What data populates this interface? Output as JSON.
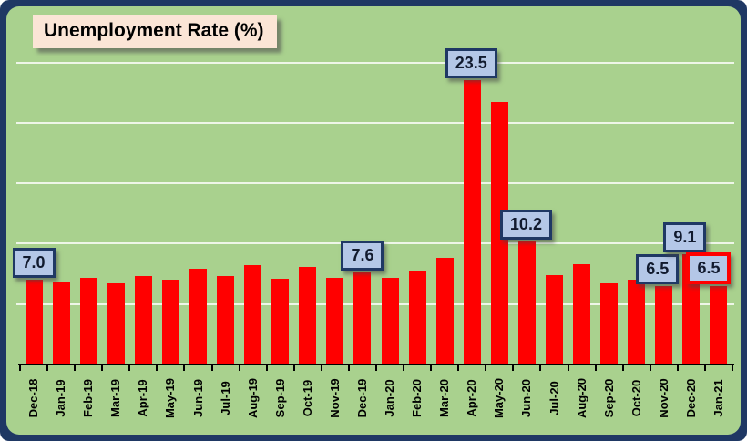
{
  "chart": {
    "title": "Unemployment Rate (%)"
  },
  "colors": {
    "frame_navy": "#1f3864",
    "panel_green": "#a9d18e",
    "bar_red": "#ff0000",
    "callout_fill": "#b4c7e7",
    "callout_border": "#1f3864",
    "callout_highlight_border": "#ff0000",
    "title_fill": "#fbe5d6",
    "gridline": "rgba(255,255,255,0.8)"
  },
  "chart_data": {
    "type": "bar",
    "title": "Unemployment Rate (%)",
    "xlabel": "",
    "ylabel": "",
    "ylim": [
      0,
      26
    ],
    "gridline_values": [
      5,
      10,
      15,
      20,
      25
    ],
    "grid": true,
    "legend": false,
    "categories": [
      "Dec-18",
      "Jan-19",
      "Feb-19",
      "Mar-19",
      "Apr-19",
      "May-19",
      "Jun-19",
      "Jul-19",
      "Aug-19",
      "Sep-19",
      "Oct-19",
      "Nov-19",
      "Dec-19",
      "Jan-20",
      "Feb-20",
      "Mar-20",
      "Apr-20",
      "May-20",
      "Jun-20",
      "Jul-20",
      "Aug-20",
      "Sep-20",
      "Oct-20",
      "Nov-20",
      "Dec-20",
      "Jan-21"
    ],
    "values": [
      7.0,
      6.9,
      7.2,
      6.7,
      7.3,
      7.0,
      7.9,
      7.3,
      8.2,
      7.1,
      8.1,
      7.2,
      7.6,
      7.2,
      7.8,
      8.8,
      23.5,
      21.7,
      10.2,
      7.4,
      8.3,
      6.7,
      7.0,
      6.5,
      9.1,
      6.5
    ],
    "callouts": [
      {
        "category": "Dec-18",
        "label": "7.0",
        "highlighted": false
      },
      {
        "category": "Dec-19",
        "label": "7.6",
        "highlighted": false
      },
      {
        "category": "Apr-20",
        "label": "23.5",
        "highlighted": false
      },
      {
        "category": "Jun-20",
        "label": "10.2",
        "highlighted": false
      },
      {
        "category": "Nov-20",
        "label": "6.5",
        "highlighted": false
      },
      {
        "category": "Dec-20",
        "label": "9.1",
        "highlighted": false
      },
      {
        "category": "Jan-21",
        "label": "6.5",
        "highlighted": true
      }
    ]
  }
}
